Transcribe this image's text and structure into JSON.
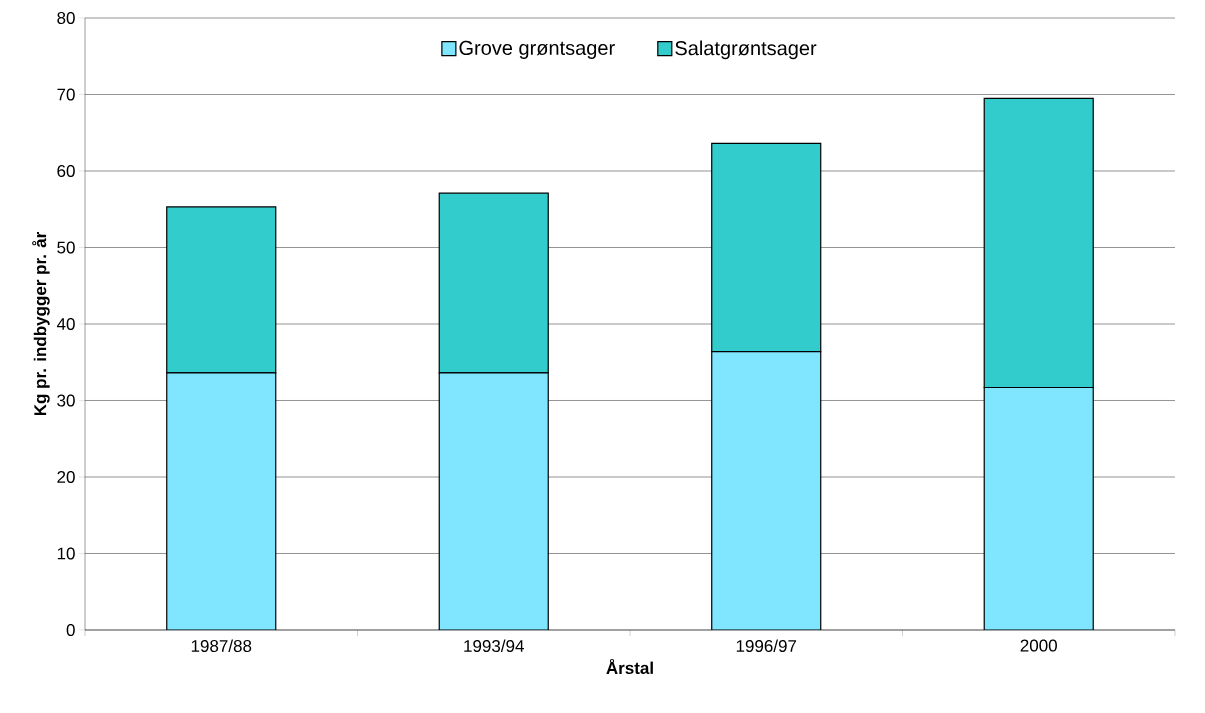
{
  "chart_data": {
    "type": "bar",
    "stacked": true,
    "categories": [
      "1987/88",
      "1993/94",
      "1996/97",
      "2000"
    ],
    "series": [
      {
        "name": "Grove grøntsager",
        "color": "#80e6ff",
        "values": [
          33.6,
          33.6,
          36.4,
          31.7
        ]
      },
      {
        "name": "Salatgrøntsager",
        "color": "#33cccc",
        "values": [
          21.7,
          23.5,
          27.2,
          37.8
        ]
      }
    ],
    "xlabel": "Årstal",
    "ylabel": "Kg pr.  indbygger pr. år",
    "ylim": [
      0,
      80
    ],
    "yticks": [
      0,
      10,
      20,
      30,
      40,
      50,
      60,
      70,
      80
    ],
    "grid": "y",
    "legend": "top"
  }
}
